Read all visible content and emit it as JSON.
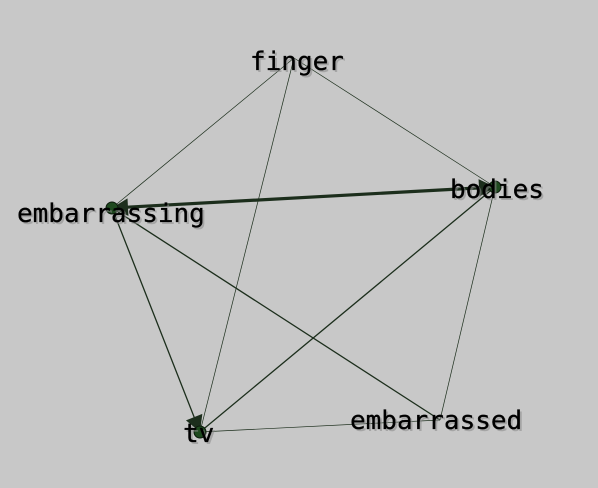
{
  "graph": {
    "background": "#c8c8c8",
    "node_color": "#1f4a1f",
    "edge_color": "#1c2e1c",
    "nodes": [
      {
        "id": "finger",
        "label": "finger"
      },
      {
        "id": "bodies",
        "label": "bodies"
      },
      {
        "id": "embarrassing",
        "label": "embarrassing"
      },
      {
        "id": "tv",
        "label": "tv"
      },
      {
        "id": "embarrassed",
        "label": "embarrassed"
      }
    ],
    "edges": [
      {
        "source": "finger",
        "target": "embarrassing",
        "weight": "thin"
      },
      {
        "source": "finger",
        "target": "bodies",
        "weight": "thin"
      },
      {
        "source": "finger",
        "target": "tv",
        "weight": "thin"
      },
      {
        "source": "bodies",
        "target": "embarrassing",
        "weight": "thick",
        "arrow": "both"
      },
      {
        "source": "bodies",
        "target": "tv",
        "weight": "medium"
      },
      {
        "source": "bodies",
        "target": "embarrassed",
        "weight": "thin"
      },
      {
        "source": "embarrassing",
        "target": "tv",
        "weight": "medium",
        "arrow": "target"
      },
      {
        "source": "embarrassing",
        "target": "embarrassed",
        "weight": "medium"
      },
      {
        "source": "tv",
        "target": "embarrassed",
        "weight": "thin"
      }
    ]
  }
}
